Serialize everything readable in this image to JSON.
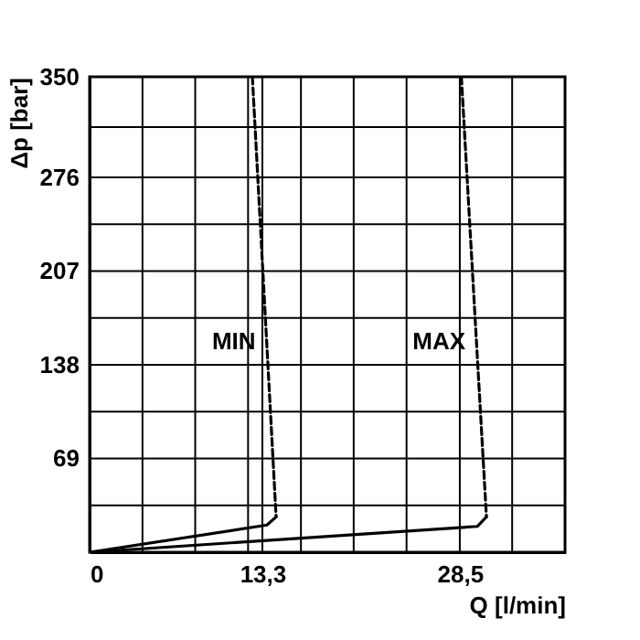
{
  "chart_data": {
    "type": "line",
    "xlabel": "Q [l/min]",
    "ylabel": "Δp [bar]",
    "xlim": [
      0,
      36.6
    ],
    "ylim": [
      0,
      350
    ],
    "xticks": [
      0,
      {
        "value": 4.07,
        "label": null
      },
      {
        "value": 8.13,
        "label": null
      },
      {
        "value": 12.2,
        "label": null
      },
      {
        "value": 13.3,
        "label": "13,3"
      },
      {
        "value": 16.27,
        "label": null
      },
      {
        "value": 20.33,
        "label": null
      },
      {
        "value": 24.4,
        "label": null
      },
      {
        "value": 28.5,
        "label": "28,5"
      },
      {
        "value": 32.53,
        "label": null
      },
      {
        "value": 36.6,
        "label": null
      }
    ],
    "yticks": [
      {
        "value": 0,
        "label": null
      },
      {
        "value": 34.5,
        "label": null
      },
      69,
      {
        "value": 103.5,
        "label": null
      },
      138,
      {
        "value": 172.5,
        "label": null
      },
      207,
      {
        "value": 241.5,
        "label": null
      },
      276,
      {
        "value": 313,
        "label": null
      },
      350
    ],
    "grid": true,
    "marker": "none",
    "series": [
      {
        "color": "#000000",
        "line_style": "solid",
        "x": [
          0,
          13.65,
          14.36
        ],
        "values": [
          0,
          20,
          26
        ]
      },
      {
        "color": "#000000",
        "line_style": "dashed",
        "x": [
          14.36,
          12.53
        ],
        "values": [
          26,
          350
        ]
      },
      {
        "color": "#000000",
        "line_style": "solid",
        "x": [
          0,
          29.84,
          30.55
        ],
        "values": [
          0,
          19,
          26
        ]
      },
      {
        "color": "#000000",
        "line_style": "dashed",
        "x": [
          30.55,
          28.62
        ],
        "values": [
          26,
          350
        ]
      }
    ],
    "annotations": [
      {
        "text": "MIN",
        "x": 13.63,
        "y": 155
      },
      {
        "text": "MAX",
        "x": 29.78,
        "y": 155
      }
    ]
  }
}
